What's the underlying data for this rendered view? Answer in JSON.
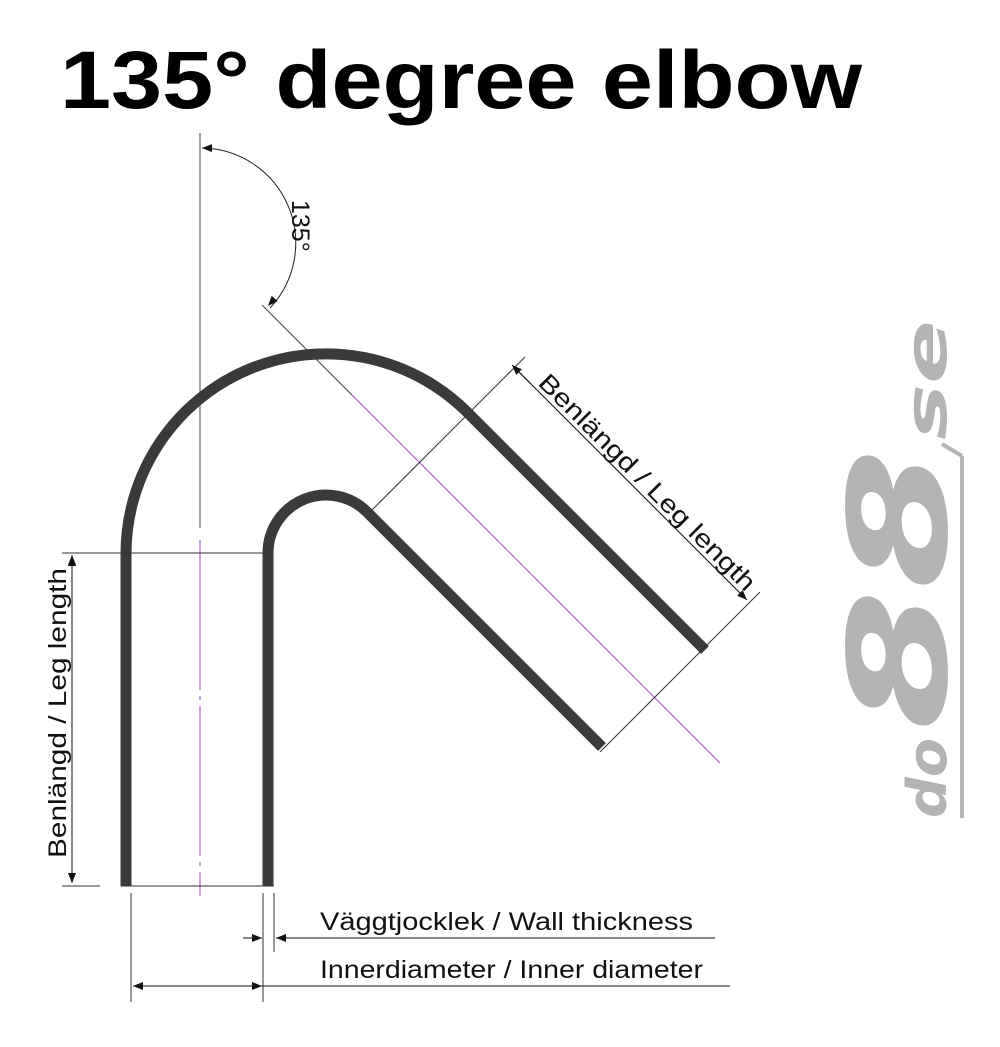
{
  "title": "135° degree elbow",
  "angle_label": "135°",
  "labels": {
    "leg_length_left": "Benlängd / Leg length",
    "leg_length_right": "Benlängd / Leg length",
    "wall_thickness": "Väggtjocklek / Wall thickness",
    "inner_diameter": "Innerdiameter / Inner diameter"
  },
  "logo": {
    "part1": "do",
    "part2": "88",
    "part3": "se"
  },
  "colors": {
    "pipe": "#3a3a3a",
    "centerline": "#b070c8",
    "dimension": "#333333",
    "logo": "#b4b4b4"
  }
}
